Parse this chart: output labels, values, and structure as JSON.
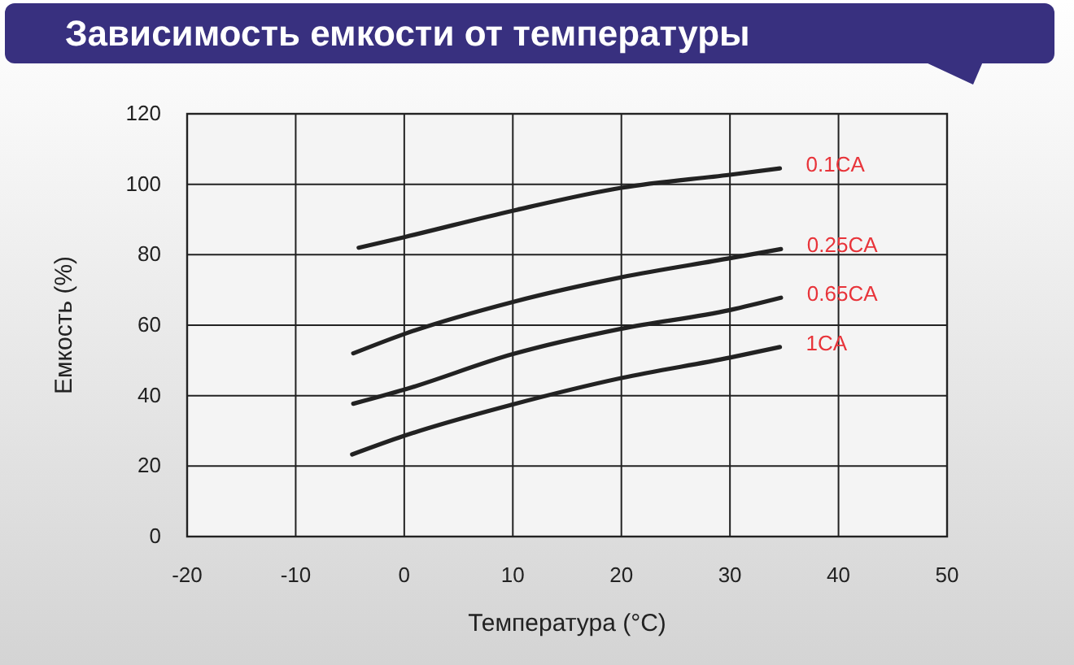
{
  "chart_data": {
    "type": "line",
    "title": "Зависимость емкости от температуры",
    "xlabel": "Температура (°C)",
    "ylabel": "Емкость (%)",
    "xlim": [
      -20,
      50
    ],
    "xticks": [
      -20,
      -10,
      0,
      10,
      20,
      30,
      40,
      50
    ],
    "ylim": [
      0,
      120
    ],
    "yticks": [
      0,
      20,
      40,
      60,
      80,
      100,
      120
    ],
    "grid": true,
    "legend": false,
    "marker": "none",
    "line_style": "solid",
    "series": [
      {
        "name": "0.1CA",
        "color": "#222222",
        "x": [
          -4.2,
          0,
          10,
          20,
          30,
          34.6
        ],
        "values": [
          82,
          85,
          92.5,
          99,
          102.7,
          104.5
        ]
      },
      {
        "name": "0.25CA",
        "color": "#222222",
        "x": [
          -4.7,
          0,
          10,
          20,
          30,
          34.7
        ],
        "values": [
          52,
          57.5,
          66.6,
          73.6,
          79,
          81.6
        ]
      },
      {
        "name": "0.65CA",
        "color": "#222222",
        "x": [
          -4.7,
          0,
          10,
          20,
          30,
          34.7
        ],
        "values": [
          37.7,
          41.7,
          51.8,
          59,
          64.3,
          67.8
        ]
      },
      {
        "name": "1CA",
        "color": "#222222",
        "x": [
          -4.8,
          0,
          10,
          20,
          30,
          34.6
        ],
        "values": [
          23.3,
          28.6,
          37.5,
          45,
          50.8,
          53.8
        ]
      }
    ]
  }
}
